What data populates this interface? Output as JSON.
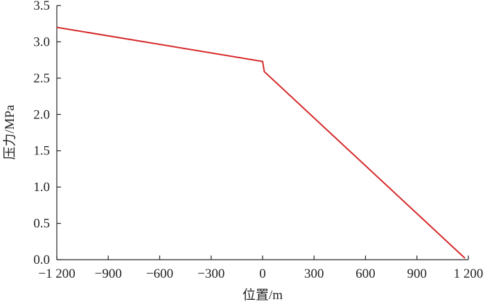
{
  "chart_data": {
    "type": "line",
    "xlabel": "位置/m",
    "ylabel": "压力/MPa",
    "xlim": [
      -1200,
      1200
    ],
    "ylim": [
      0,
      3.5
    ],
    "x_ticks": [
      -1200,
      -900,
      -600,
      -300,
      0,
      300,
      600,
      900,
      1200
    ],
    "x_tick_labels": [
      "−1 200",
      "−900",
      "−600",
      "−300",
      "0",
      "300",
      "600",
      "900",
      "1 200"
    ],
    "y_ticks": [
      0,
      0.5,
      1.0,
      1.5,
      2.0,
      2.5,
      3.0,
      3.5
    ],
    "y_tick_labels": [
      "0.0",
      "0.5",
      "1.0",
      "1.5",
      "2.0",
      "2.5",
      "3.0",
      "3.5"
    ],
    "grid": false,
    "series": [
      {
        "color": "#d62728",
        "x": [
          -1200,
          0,
          0,
          10,
          1180
        ],
        "y": [
          3.2,
          2.73,
          2.73,
          2.59,
          0.02
        ]
      }
    ]
  }
}
